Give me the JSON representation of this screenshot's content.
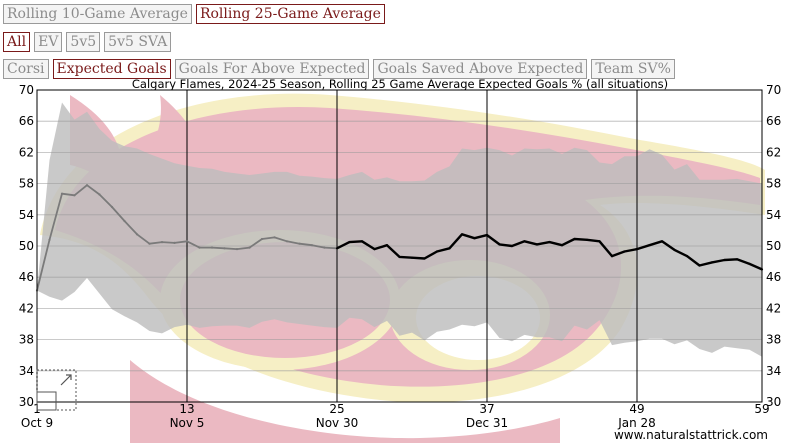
{
  "controls": {
    "window_tabs": [
      {
        "label": "Rolling 10-Game Average",
        "active": false
      },
      {
        "label": "Rolling 25-Game Average",
        "active": true
      }
    ],
    "situation_tabs": [
      {
        "label": "All",
        "active": true
      },
      {
        "label": "EV",
        "active": false
      },
      {
        "label": "5v5",
        "active": false
      },
      {
        "label": "5v5 SVA",
        "active": false
      }
    ],
    "metric_tabs": [
      {
        "label": "Corsi",
        "active": false
      },
      {
        "label": "Expected Goals",
        "active": true
      },
      {
        "label": "Goals For Above Expected",
        "active": false
      },
      {
        "label": "Goals Saved Above Expected",
        "active": false
      },
      {
        "label": "Team SV%",
        "active": false
      }
    ]
  },
  "watermark": "www.naturalstattrick.com",
  "colors": {
    "line": "#000000",
    "band": "#bdbdbd",
    "grid": "#cfcfcf",
    "axis": "#000000",
    "logo_red": "#e8b4bd",
    "logo_gold": "#f6efc5"
  },
  "chart_data": {
    "type": "line",
    "title": "Calgary Flames, 2024-25 Season, Rolling 25 Game Average Expected Goals % (all situations)",
    "xlim": [
      1,
      59
    ],
    "ylim": [
      30,
      70
    ],
    "yticks": [
      30,
      34,
      38,
      42,
      46,
      50,
      54,
      58,
      62,
      66,
      70
    ],
    "xticks": [
      {
        "game": 1,
        "date": "Oct 9"
      },
      {
        "game": 13,
        "date": "Nov 5"
      },
      {
        "game": 25,
        "date": "Nov 30"
      },
      {
        "game": 37,
        "date": "Dec 31"
      },
      {
        "game": 49,
        "date": "Jan 28"
      },
      {
        "game": 59,
        "date": ""
      }
    ],
    "grid": true,
    "series": [
      {
        "style": "partial-window",
        "games": [
          1,
          2,
          3,
          4,
          5,
          6,
          7,
          8,
          9,
          10,
          11,
          12,
          13,
          14,
          15,
          16,
          17,
          18,
          19,
          20,
          21,
          22,
          23,
          24,
          25
        ],
        "values": [
          44.3,
          50.8,
          56.7,
          56.5,
          57.8,
          56.6,
          55.0,
          53.2,
          51.5,
          50.3,
          50.5,
          50.4,
          50.6,
          49.8,
          49.8,
          49.7,
          49.6,
          49.8,
          50.9,
          51.1,
          50.6,
          50.3,
          50.1,
          49.8,
          49.7
        ]
      },
      {
        "style": "full-window",
        "games": [
          25,
          26,
          27,
          28,
          29,
          30,
          31,
          32,
          33,
          34,
          35,
          36,
          37,
          38,
          39,
          40,
          41,
          42,
          43,
          44,
          45,
          46,
          47,
          48,
          49,
          50,
          51,
          52,
          53,
          54,
          55,
          56,
          57,
          58,
          59
        ],
        "values": [
          49.7,
          50.5,
          50.6,
          49.6,
          50.1,
          48.6,
          48.5,
          48.4,
          49.3,
          49.7,
          51.5,
          51.0,
          51.4,
          50.2,
          50.0,
          50.6,
          50.2,
          50.5,
          50.1,
          50.9,
          50.8,
          50.6,
          48.7,
          49.3,
          49.6,
          50.1,
          50.6,
          49.5,
          48.7,
          47.5,
          47.9,
          48.2,
          48.3,
          47.7,
          47.0
        ]
      }
    ],
    "band": {
      "games": [
        1,
        2,
        3,
        4,
        5,
        6,
        7,
        8,
        9,
        10,
        11,
        12,
        13,
        14,
        15,
        16,
        17,
        18,
        19,
        20,
        21,
        22,
        23,
        24,
        25,
        26,
        27,
        28,
        29,
        30,
        31,
        32,
        33,
        34,
        35,
        36,
        37,
        38,
        39,
        40,
        41,
        42,
        43,
        44,
        45,
        46,
        47,
        48,
        49,
        50,
        51,
        52,
        53,
        54,
        55,
        56,
        57,
        58,
        59
      ],
      "upper": [
        44.3,
        61,
        68.4,
        66.2,
        67.2,
        65,
        63.5,
        62.8,
        62.5,
        61.8,
        61.2,
        60.6,
        60.3,
        60.0,
        59.9,
        59.5,
        59.3,
        59.1,
        59.3,
        59.5,
        59.5,
        59.0,
        58.9,
        58.7,
        58.6,
        59.1,
        59.5,
        58.5,
        58.8,
        58.3,
        58.3,
        58.4,
        59.5,
        60.2,
        62.5,
        62.3,
        62.6,
        62.3,
        61.6,
        62.5,
        62.4,
        62.5,
        61.8,
        62.6,
        62.3,
        60.7,
        60.5,
        61.5,
        61.5,
        62.4,
        61.7,
        59.8,
        60.5,
        58.5,
        58.5,
        58.5,
        58.6,
        58.3,
        58.0
      ],
      "lower": [
        44.3,
        43.5,
        43.0,
        44.1,
        45.9,
        43.9,
        41.9,
        41.0,
        40.2,
        39.1,
        38.8,
        39.6,
        39.9,
        39.5,
        39.7,
        39.8,
        39.8,
        39.5,
        40.3,
        40.6,
        40.2,
        40.0,
        39.8,
        39.6,
        39.5,
        40.8,
        40.6,
        39.6,
        40.4,
        38.5,
        38.9,
        37.9,
        39.0,
        39.3,
        39.9,
        39.7,
        40.2,
        38.2,
        37.8,
        38.6,
        38.3,
        38.3,
        37.8,
        39.8,
        39.3,
        40.5,
        37.3,
        37.6,
        37.8,
        38.1,
        38.1,
        37.4,
        37.9,
        36.8,
        36.3,
        37.1,
        36.9,
        36.7,
        35.8
      ]
    }
  }
}
